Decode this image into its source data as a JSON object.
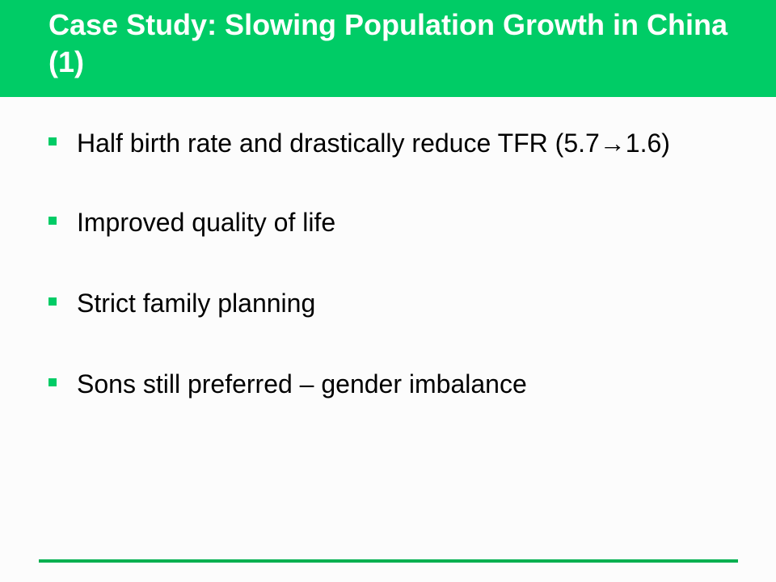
{
  "slide": {
    "title": "Case Study: Slowing Population Growth in China (1)",
    "bullets": [
      "Half birth rate and drastically reduce TFR (5.7→1.6)",
      "Improved quality of life",
      "Strict family planning",
      "Sons still preferred – gender imbalance"
    ]
  },
  "colors": {
    "title_bar": "#00cc66",
    "title_text": "#ffffff",
    "bullet_marker": "#00cc66",
    "body_text": "#000000",
    "footer_rule": "#00b050",
    "background": "#fcfcfc"
  }
}
